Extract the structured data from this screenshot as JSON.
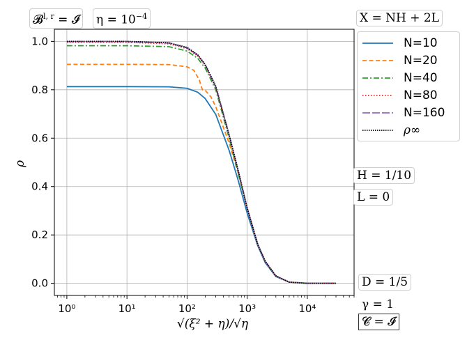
{
  "chart_data": {
    "type": "line",
    "xlabel": "√(ξ² + η)/√η",
    "ylabel": "ρ",
    "xscale": "log",
    "xlim": [
      0.62,
      60000
    ],
    "ylim": [
      -0.05,
      1.05
    ],
    "grid": true,
    "legend_position": "right",
    "xticks": [
      {
        "value": 1,
        "label": "10⁰"
      },
      {
        "value": 10,
        "label": "10¹"
      },
      {
        "value": 100,
        "label": "10²"
      },
      {
        "value": 1000,
        "label": "10³"
      },
      {
        "value": 10000,
        "label": "10⁴"
      }
    ],
    "yticks": [
      {
        "value": 0.0,
        "label": "0.0"
      },
      {
        "value": 0.2,
        "label": "0.2"
      },
      {
        "value": 0.4,
        "label": "0.4"
      },
      {
        "value": 0.6,
        "label": "0.6"
      },
      {
        "value": 0.8,
        "label": "0.8"
      },
      {
        "value": 1.0,
        "label": "1.0"
      }
    ],
    "series": [
      {
        "name": "N=10",
        "color": "#1f77b4",
        "dash": "solid",
        "x": [
          1,
          10,
          50,
          100,
          150,
          200,
          300,
          500,
          700,
          1000,
          1500,
          2000,
          3000,
          5000,
          10000,
          30000
        ],
        "y": [
          0.813,
          0.813,
          0.812,
          0.806,
          0.79,
          0.764,
          0.698,
          0.55,
          0.43,
          0.29,
          0.155,
          0.085,
          0.028,
          0.005,
          0.0,
          0.0
        ]
      },
      {
        "name": "N=20",
        "color": "#ff7f0e",
        "dash": "dashed",
        "x": [
          1,
          10,
          50,
          100,
          130,
          160,
          180,
          200,
          250,
          300,
          500,
          700,
          1000,
          1500,
          2000,
          3000,
          5000,
          10000,
          30000
        ],
        "y": [
          0.905,
          0.905,
          0.904,
          0.895,
          0.88,
          0.84,
          0.8,
          0.798,
          0.77,
          0.73,
          0.58,
          0.46,
          0.31,
          0.16,
          0.09,
          0.03,
          0.005,
          0.0,
          0.0
        ]
      },
      {
        "name": "N=40",
        "color": "#2ca02c",
        "dash": "dashdot",
        "x": [
          1,
          10,
          50,
          100,
          150,
          200,
          300,
          500,
          700,
          1000,
          1500,
          2000,
          3000,
          5000,
          10000,
          30000
        ],
        "y": [
          0.982,
          0.982,
          0.978,
          0.96,
          0.93,
          0.89,
          0.8,
          0.6,
          0.46,
          0.31,
          0.16,
          0.09,
          0.03,
          0.005,
          0.0,
          0.0
        ]
      },
      {
        "name": "N=80",
        "color": "#d62728",
        "dash": "dotted",
        "x": [
          1,
          10,
          50,
          100,
          150,
          200,
          300,
          500,
          700,
          1000,
          1500,
          2000,
          3000,
          5000,
          10000,
          30000
        ],
        "y": [
          0.996,
          0.996,
          0.99,
          0.97,
          0.94,
          0.9,
          0.81,
          0.61,
          0.47,
          0.31,
          0.16,
          0.09,
          0.03,
          0.005,
          0.0,
          0.0
        ]
      },
      {
        "name": "N=160",
        "color": "#9467bd",
        "dash": "longdash",
        "x": [
          1,
          10,
          50,
          100,
          150,
          200,
          300,
          500,
          700,
          1000,
          1500,
          2000,
          3000,
          5000,
          10000,
          30000
        ],
        "y": [
          0.999,
          0.999,
          0.993,
          0.973,
          0.943,
          0.903,
          0.812,
          0.612,
          0.47,
          0.31,
          0.16,
          0.09,
          0.03,
          0.005,
          0.0,
          0.0
        ]
      },
      {
        "name": "ρ∞",
        "color": "#000000",
        "dash": "densedotted",
        "x": [
          1,
          10,
          50,
          100,
          150,
          200,
          300,
          500,
          700,
          1000,
          1500,
          2000,
          3000,
          5000,
          10000,
          30000
        ],
        "y": [
          1.0,
          1.0,
          0.994,
          0.975,
          0.945,
          0.905,
          0.815,
          0.615,
          0.472,
          0.312,
          0.161,
          0.091,
          0.031,
          0.005,
          0.0,
          0.0
        ]
      }
    ],
    "annotations": [
      "𝓑^{l,r} = 𝓘",
      "η = 10⁻⁴",
      "X = NH + 2L",
      "H = 1/10",
      "L = 0",
      "D = 1/5",
      "γ = 1",
      "𝓒 = 𝓘"
    ]
  },
  "notes": {
    "b_lr": "𝓑",
    "b_lr_sup": "l, r",
    "b_lr_rhs": " = 𝓘",
    "eta_prefix": "η = 10",
    "eta_exp": "−4",
    "x_def": "X = NH + 2L",
    "h_val": "H = 1/10",
    "l_val": "L = 0",
    "d_val": "D = 1/5",
    "gamma_val": "γ = 1",
    "c_val": "𝓒 = 𝓘"
  },
  "legend": {
    "items": [
      {
        "label": "N=10",
        "color": "#1f77b4",
        "dash": "solid"
      },
      {
        "label": "N=20",
        "color": "#ff7f0e",
        "dash": "dashed"
      },
      {
        "label": "N=40",
        "color": "#2ca02c",
        "dash": "dashdot"
      },
      {
        "label": "N=80",
        "color": "#d62728",
        "dash": "dotted"
      },
      {
        "label": "N=160",
        "color": "#9467bd",
        "dash": "longdash"
      },
      {
        "label": "ρ∞",
        "color": "#000000",
        "dash": "densedotted"
      }
    ]
  }
}
